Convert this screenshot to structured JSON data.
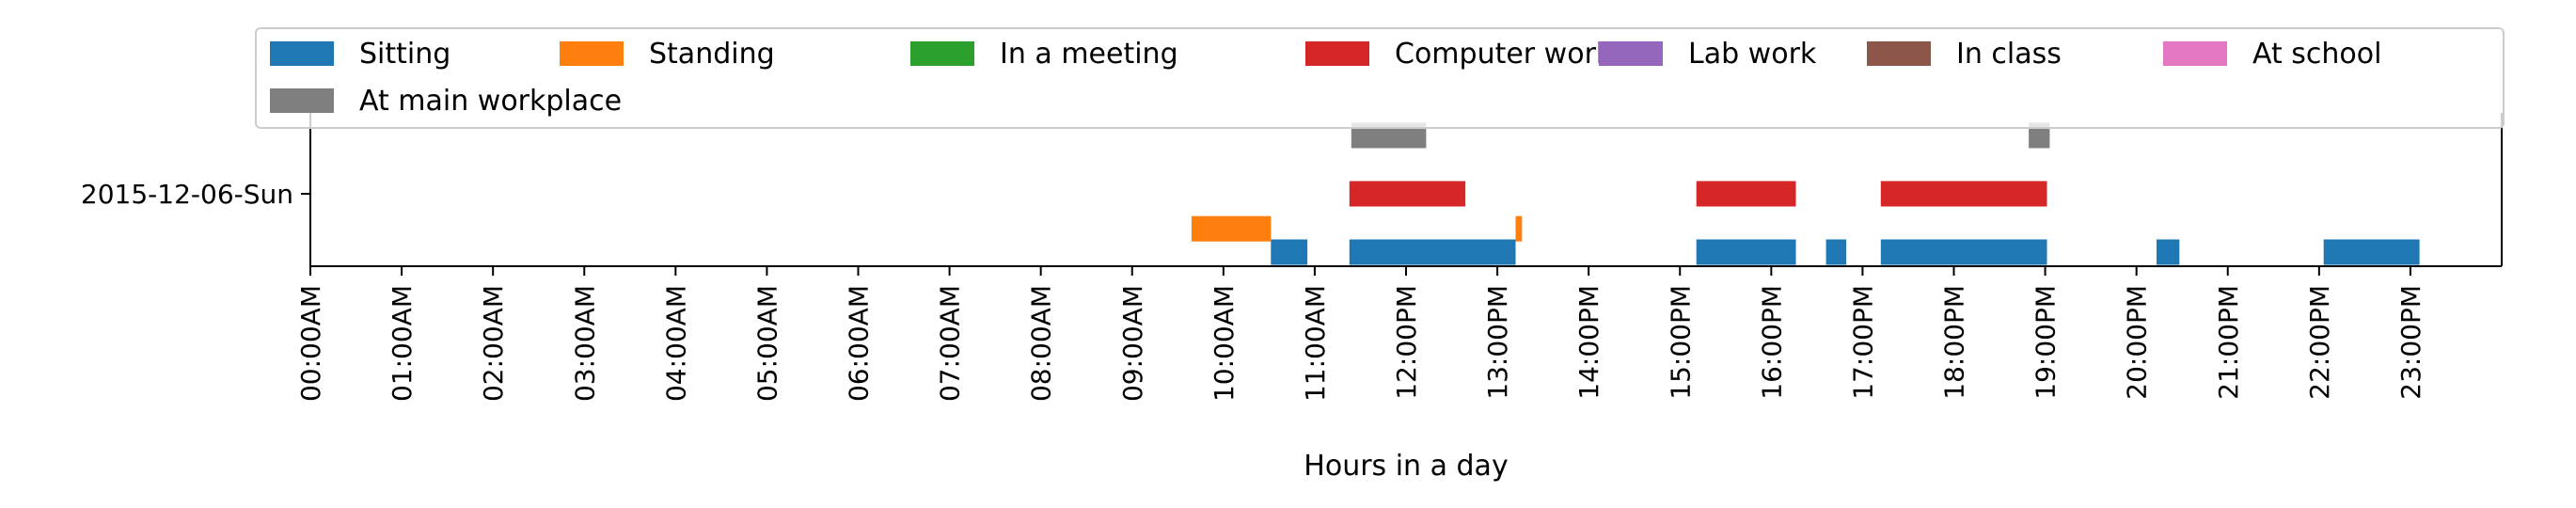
{
  "chart_data": {
    "type": "timeline",
    "xlabel": "Hours in a day",
    "ylabel": "",
    "xlim": [
      0,
      24
    ],
    "y_category": "2015-12-06-Sun",
    "x_ticks": [
      "00:00AM",
      "01:00AM",
      "02:00AM",
      "03:00AM",
      "04:00AM",
      "05:00AM",
      "06:00AM",
      "07:00AM",
      "08:00AM",
      "09:00AM",
      "10:00AM",
      "11:00AM",
      "12:00PM",
      "13:00PM",
      "14:00PM",
      "15:00PM",
      "16:00PM",
      "17:00PM",
      "18:00PM",
      "19:00PM",
      "20:00PM",
      "21:00PM",
      "22:00PM",
      "23:00PM"
    ],
    "legend_position": "top",
    "grid": false,
    "series": [
      {
        "name": "Sitting",
        "color": "#1f77b4",
        "lane": 0,
        "intervals": [
          [
            10.52,
            10.92
          ],
          [
            11.38,
            13.2
          ],
          [
            15.18,
            16.27
          ],
          [
            16.6,
            16.82
          ],
          [
            17.2,
            19.02
          ],
          [
            20.22,
            20.47
          ],
          [
            22.05,
            23.1
          ]
        ]
      },
      {
        "name": "Standing",
        "color": "#ff7f0e",
        "lane": 0.4,
        "intervals": [
          [
            9.65,
            10.52
          ],
          [
            13.2,
            13.27
          ]
        ]
      },
      {
        "name": "In a meeting",
        "color": "#2ca02c",
        "lane": 1,
        "intervals": []
      },
      {
        "name": "Computer work",
        "color": "#d62728",
        "lane": 1,
        "intervals": [
          [
            11.38,
            12.65
          ],
          [
            15.18,
            16.27
          ],
          [
            17.2,
            19.02
          ]
        ]
      },
      {
        "name": "Lab work",
        "color": "#9467bd",
        "lane": 2,
        "intervals": []
      },
      {
        "name": "In class",
        "color": "#8c564b",
        "lane": 2,
        "intervals": []
      },
      {
        "name": "At school",
        "color": "#e377c2",
        "lane": 2,
        "intervals": []
      },
      {
        "name": "At main workplace",
        "color": "#7f7f7f",
        "lane": 2,
        "intervals": [
          [
            11.4,
            12.22
          ],
          [
            18.82,
            19.05
          ]
        ]
      }
    ]
  }
}
